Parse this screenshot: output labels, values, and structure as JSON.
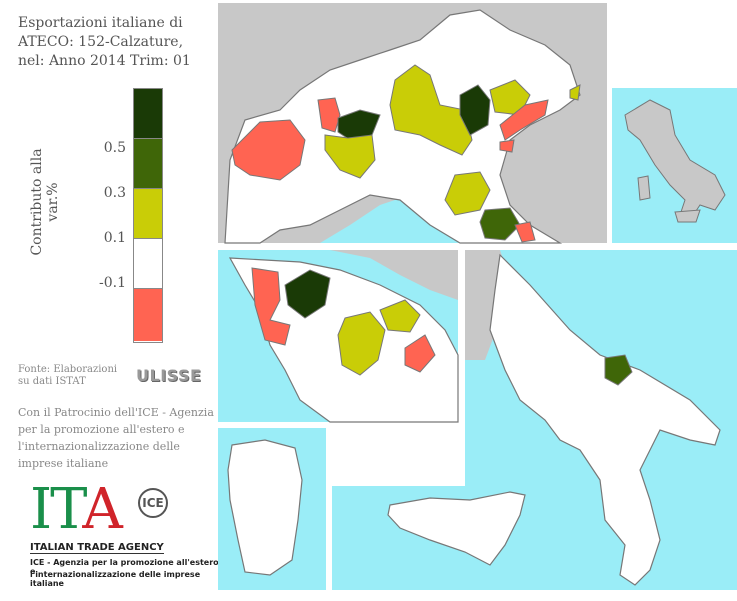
{
  "title": "Esportazioni italiane di\nATECO: 152-Calzature,\nnel: Anno 2014 Trim: 01",
  "legend": {
    "axis_label": "Contributo alla var.%",
    "ticks": [
      "0.5",
      "0.3",
      "0.1",
      "-0.1"
    ],
    "colors": [
      "#1a3a06",
      "#3f6608",
      "#c9cd07",
      "#ffffff",
      "#ff6452"
    ]
  },
  "source": "Fonte: Elaborazioni su dati ISTAT",
  "ulisse_logo": "ULISSE",
  "patronage": "Con il Patrocinio dell'ICE - Agenzia per la promozione all'estero e l'internazionalizzazione delle imprese italiane",
  "logo": {
    "letters_i": "I",
    "letters_t": "T",
    "letters_a": "A",
    "mark": "ICE",
    "name": "ITALIAN TRADE AGENCY",
    "sub1": "ICE - Agenzia per la promozione all'estero e",
    "sub2": "l'internazionalizzazione delle imprese italiane"
  },
  "map_colors": {
    "sea": "#9aedf7",
    "land": "#ffffff",
    "foreign": "#c8c8c8",
    "border": "#777777"
  }
}
